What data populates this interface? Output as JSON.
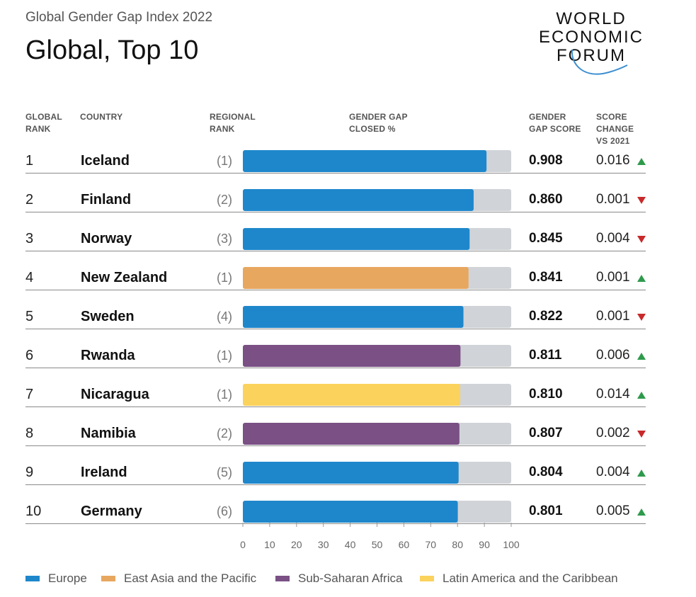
{
  "header": {
    "subtitle": "Global Gender Gap Index 2022",
    "title": "Global, Top 10"
  },
  "logo": {
    "line1": "WORLD",
    "line2": "ECONOMIC",
    "line3": "FORUM"
  },
  "columns": {
    "global_rank": [
      "GLOBAL",
      "RANK"
    ],
    "country": [
      "COUNTRY"
    ],
    "regional_rank": [
      "REGIONAL",
      "RANK"
    ],
    "gap_closed": [
      "GENDER GAP",
      "CLOSED %"
    ],
    "score": [
      "GENDER",
      "GAP SCORE"
    ],
    "change": [
      "SCORE",
      "CHANGE",
      "VS 2021"
    ]
  },
  "colors": {
    "Europe": "#1e87cb",
    "East Asia and the Pacific": "#e7a75f",
    "Sub-Saharan Africa": "#7a5085",
    "Latin America and the Caribbean": "#fbd25c",
    "remainder": "#d0d3d7",
    "up": "#2e9a4c",
    "down": "#c8292b"
  },
  "chart_data": {
    "type": "bar",
    "xlim": [
      0,
      100
    ],
    "xticks": [
      "0",
      "10",
      "20",
      "30",
      "40",
      "50",
      "60",
      "70",
      "80",
      "90",
      "100"
    ],
    "rows": [
      {
        "rank": "1",
        "country": "Iceland",
        "regional_rank": "(1)",
        "region": "Europe",
        "closed": 90.8,
        "score": "0.908",
        "change": "0.016",
        "direction": "up"
      },
      {
        "rank": "2",
        "country": "Finland",
        "regional_rank": "(2)",
        "region": "Europe",
        "closed": 86.0,
        "score": "0.860",
        "change": "0.001",
        "direction": "down"
      },
      {
        "rank": "3",
        "country": "Norway",
        "regional_rank": "(3)",
        "region": "Europe",
        "closed": 84.5,
        "score": "0.845",
        "change": "0.004",
        "direction": "down"
      },
      {
        "rank": "4",
        "country": "New Zealand",
        "regional_rank": "(1)",
        "region": "East Asia and the Pacific",
        "closed": 84.1,
        "score": "0.841",
        "change": "0.001",
        "direction": "up"
      },
      {
        "rank": "5",
        "country": "Sweden",
        "regional_rank": "(4)",
        "region": "Europe",
        "closed": 82.2,
        "score": "0.822",
        "change": "0.001",
        "direction": "down"
      },
      {
        "rank": "6",
        "country": "Rwanda",
        "regional_rank": "(1)",
        "region": "Sub-Saharan Africa",
        "closed": 81.1,
        "score": "0.811",
        "change": "0.006",
        "direction": "up"
      },
      {
        "rank": "7",
        "country": "Nicaragua",
        "regional_rank": "(1)",
        "region": "Latin America and the Caribbean",
        "closed": 81.0,
        "score": "0.810",
        "change": "0.014",
        "direction": "up"
      },
      {
        "rank": "8",
        "country": "Namibia",
        "regional_rank": "(2)",
        "region": "Sub-Saharan Africa",
        "closed": 80.7,
        "score": "0.807",
        "change": "0.002",
        "direction": "down"
      },
      {
        "rank": "9",
        "country": "Ireland",
        "regional_rank": "(5)",
        "region": "Europe",
        "closed": 80.4,
        "score": "0.804",
        "change": "0.004",
        "direction": "up"
      },
      {
        "rank": "10",
        "country": "Germany",
        "regional_rank": "(6)",
        "region": "Europe",
        "closed": 80.1,
        "score": "0.801",
        "change": "0.005",
        "direction": "up"
      }
    ],
    "legend": [
      "Europe",
      "East Asia and the Pacific",
      "Sub-Saharan Africa",
      "Latin America and the Caribbean"
    ]
  }
}
